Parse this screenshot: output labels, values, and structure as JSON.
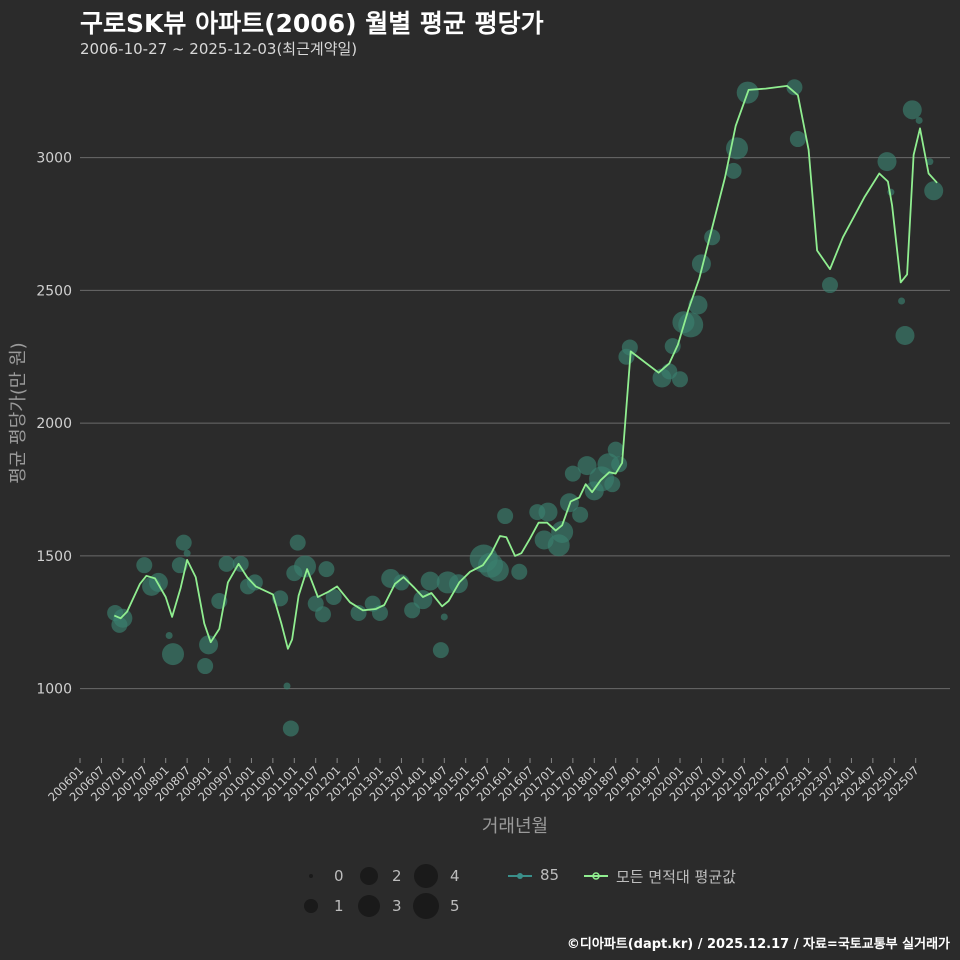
{
  "header": {
    "title": "구로SK뷰 아파트(2006) 월별 평균 평당가",
    "subtitle": "2006-10-27 ~ 2025-12-03(최근계약일)"
  },
  "footer": {
    "credit": "©디아파트(dapt.kr) / 2025.12.17 / 자료=국토교통부 실거래가"
  },
  "colors": {
    "background": "#2b2b2b",
    "grid": "#6b6b6b",
    "line": "#90ee90",
    "points": "#3a7f6e",
    "legend_dot": "#1a1a1a",
    "series85": "#3a8f8a"
  },
  "legend": {
    "sizes": [
      "0",
      "1",
      "2",
      "3",
      "4",
      "5"
    ],
    "series_label": "85",
    "line_label": "모든 면적대 평균값"
  },
  "chart_data": {
    "type": "scatter",
    "title": "구로SK뷰 아파트(2006) 월별 평균 평당가",
    "xlabel": "거래년월",
    "ylabel": "평균 평당가(만 원)",
    "ylim": [
      750,
      3330
    ],
    "xlim": [
      2006.0,
      2026.3
    ],
    "yticks": [
      1000,
      1500,
      2000,
      2500,
      3000
    ],
    "xticks": [
      "200601",
      "200607",
      "200701",
      "200707",
      "200801",
      "200807",
      "200901",
      "200907",
      "201001",
      "201007",
      "201101",
      "201107",
      "201201",
      "201207",
      "201301",
      "201307",
      "201401",
      "201407",
      "201501",
      "201507",
      "201601",
      "201607",
      "201701",
      "201707",
      "201801",
      "201807",
      "201901",
      "201907",
      "202001",
      "202007",
      "202101",
      "202107",
      "202201",
      "202207",
      "202301",
      "202307",
      "202401",
      "202407",
      "202501",
      "202507"
    ],
    "series": [
      {
        "name": "85",
        "points": [
          [
            2006.82,
            1285,
            2
          ],
          [
            2006.92,
            1240,
            2
          ],
          [
            2007.0,
            1265,
            2.5
          ],
          [
            2007.5,
            1465,
            2
          ],
          [
            2007.67,
            1385,
            2.5
          ],
          [
            2007.83,
            1400,
            2.5
          ],
          [
            2008.08,
            1200,
            0.5
          ],
          [
            2008.17,
            1130,
            3
          ],
          [
            2008.33,
            1465,
            2
          ],
          [
            2008.42,
            1550,
            2
          ],
          [
            2008.5,
            1510,
            0.5
          ],
          [
            2008.92,
            1085,
            2
          ],
          [
            2009.0,
            1165,
            2.5
          ],
          [
            2009.25,
            1330,
            2
          ],
          [
            2009.42,
            1470,
            2
          ],
          [
            2009.75,
            1470,
            2
          ],
          [
            2009.92,
            1385,
            2
          ],
          [
            2010.08,
            1400,
            2
          ],
          [
            2010.67,
            1340,
            2
          ],
          [
            2010.83,
            1010,
            0.5
          ],
          [
            2010.92,
            850,
            2
          ],
          [
            2011.0,
            1435,
            2
          ],
          [
            2011.08,
            1550,
            2
          ],
          [
            2011.25,
            1460,
            3
          ],
          [
            2011.5,
            1320,
            2
          ],
          [
            2011.67,
            1280,
            2
          ],
          [
            2011.75,
            1450,
            2
          ],
          [
            2011.92,
            1345,
            2
          ],
          [
            2012.5,
            1285,
            2
          ],
          [
            2012.83,
            1320,
            2
          ],
          [
            2013.0,
            1285,
            2
          ],
          [
            2013.25,
            1415,
            2.5
          ],
          [
            2013.5,
            1400,
            2
          ],
          [
            2013.75,
            1295,
            2
          ],
          [
            2014.0,
            1335,
            2.5
          ],
          [
            2014.17,
            1405,
            2.5
          ],
          [
            2014.42,
            1145,
            2
          ],
          [
            2014.5,
            1270,
            0.5
          ],
          [
            2014.58,
            1400,
            3
          ],
          [
            2014.83,
            1395,
            2.5
          ],
          [
            2015.42,
            1490,
            4
          ],
          [
            2015.58,
            1465,
            3.5
          ],
          [
            2015.75,
            1445,
            3
          ],
          [
            2015.92,
            1650,
            2
          ],
          [
            2016.25,
            1440,
            2
          ],
          [
            2016.67,
            1665,
            2
          ],
          [
            2016.83,
            1560,
            2.5
          ],
          [
            2016.92,
            1665,
            2.5
          ],
          [
            2017.17,
            1540,
            3
          ],
          [
            2017.25,
            1590,
            3
          ],
          [
            2017.42,
            1700,
            2.5
          ],
          [
            2017.5,
            1810,
            2
          ],
          [
            2017.67,
            1655,
            2
          ],
          [
            2017.83,
            1840,
            2.5
          ],
          [
            2018.0,
            1745,
            2.5
          ],
          [
            2018.17,
            1790,
            3.5
          ],
          [
            2018.33,
            1845,
            3
          ],
          [
            2018.42,
            1770,
            2
          ],
          [
            2018.5,
            1900,
            2
          ],
          [
            2018.58,
            1845,
            2
          ],
          [
            2018.75,
            2250,
            2
          ],
          [
            2018.83,
            2285,
            2
          ],
          [
            2019.58,
            2170,
            2.5
          ],
          [
            2019.75,
            2195,
            2
          ],
          [
            2019.83,
            2290,
            2
          ],
          [
            2020.0,
            2165,
            2
          ],
          [
            2020.08,
            2380,
            3
          ],
          [
            2020.25,
            2370,
            3.5
          ],
          [
            2020.42,
            2445,
            2.5
          ],
          [
            2020.5,
            2600,
            2.5
          ],
          [
            2020.75,
            2700,
            2
          ],
          [
            2021.25,
            2950,
            2
          ],
          [
            2021.33,
            3035,
            3
          ],
          [
            2021.58,
            3245,
            3
          ],
          [
            2022.67,
            3265,
            2
          ],
          [
            2022.75,
            3070,
            2
          ],
          [
            2023.5,
            2520,
            2
          ],
          [
            2024.83,
            2985,
            2.5
          ],
          [
            2024.92,
            2870,
            0.5
          ],
          [
            2025.17,
            2460,
            0.5
          ],
          [
            2025.25,
            2330,
            2.5
          ],
          [
            2025.42,
            3180,
            2.5
          ],
          [
            2025.58,
            3140,
            0.5
          ],
          [
            2025.83,
            2985,
            0.5
          ],
          [
            2025.92,
            2875,
            2.5
          ]
        ]
      }
    ],
    "line": {
      "name": "모든 면적대 평균값",
      "x": [
        2006.8,
        2006.95,
        2007.1,
        2007.4,
        2007.55,
        2007.75,
        2008.0,
        2008.15,
        2008.35,
        2008.5,
        2008.7,
        2008.9,
        2009.05,
        2009.25,
        2009.45,
        2009.7,
        2009.9,
        2010.1,
        2010.5,
        2010.7,
        2010.85,
        2010.95,
        2011.1,
        2011.3,
        2011.55,
        2011.8,
        2012.0,
        2012.3,
        2012.6,
        2012.9,
        2013.1,
        2013.35,
        2013.55,
        2013.8,
        2014.0,
        2014.2,
        2014.45,
        2014.6,
        2014.85,
        2015.1,
        2015.4,
        2015.6,
        2015.8,
        2015.95,
        2016.15,
        2016.3,
        2016.5,
        2016.7,
        2016.9,
        2017.1,
        2017.25,
        2017.45,
        2017.65,
        2017.8,
        2017.95,
        2018.15,
        2018.35,
        2018.5,
        2018.65,
        2018.85,
        2019.5,
        2019.75,
        2019.95,
        2020.2,
        2020.45,
        2020.75,
        2021.05,
        2021.3,
        2021.6,
        2022.0,
        2022.5,
        2022.75,
        2023.0,
        2023.2,
        2023.5,
        2023.8,
        2024.3,
        2024.65,
        2024.85,
        2024.95,
        2025.15,
        2025.3,
        2025.45,
        2025.6,
        2025.8,
        2026.0
      ],
      "y": [
        1275,
        1265,
        1290,
        1395,
        1425,
        1415,
        1345,
        1270,
        1380,
        1485,
        1420,
        1245,
        1175,
        1225,
        1400,
        1470,
        1420,
        1385,
        1355,
        1245,
        1150,
        1185,
        1350,
        1450,
        1345,
        1365,
        1385,
        1325,
        1295,
        1300,
        1315,
        1395,
        1420,
        1380,
        1345,
        1360,
        1310,
        1330,
        1400,
        1440,
        1465,
        1510,
        1575,
        1570,
        1500,
        1510,
        1565,
        1625,
        1625,
        1595,
        1615,
        1705,
        1720,
        1770,
        1740,
        1785,
        1815,
        1810,
        1850,
        2270,
        2190,
        2225,
        2295,
        2430,
        2545,
        2735,
        2925,
        3120,
        3255,
        3260,
        3270,
        3235,
        3030,
        2650,
        2580,
        2700,
        2850,
        2940,
        2910,
        2820,
        2530,
        2560,
        3010,
        3110,
        2940,
        2905
      ]
    }
  }
}
